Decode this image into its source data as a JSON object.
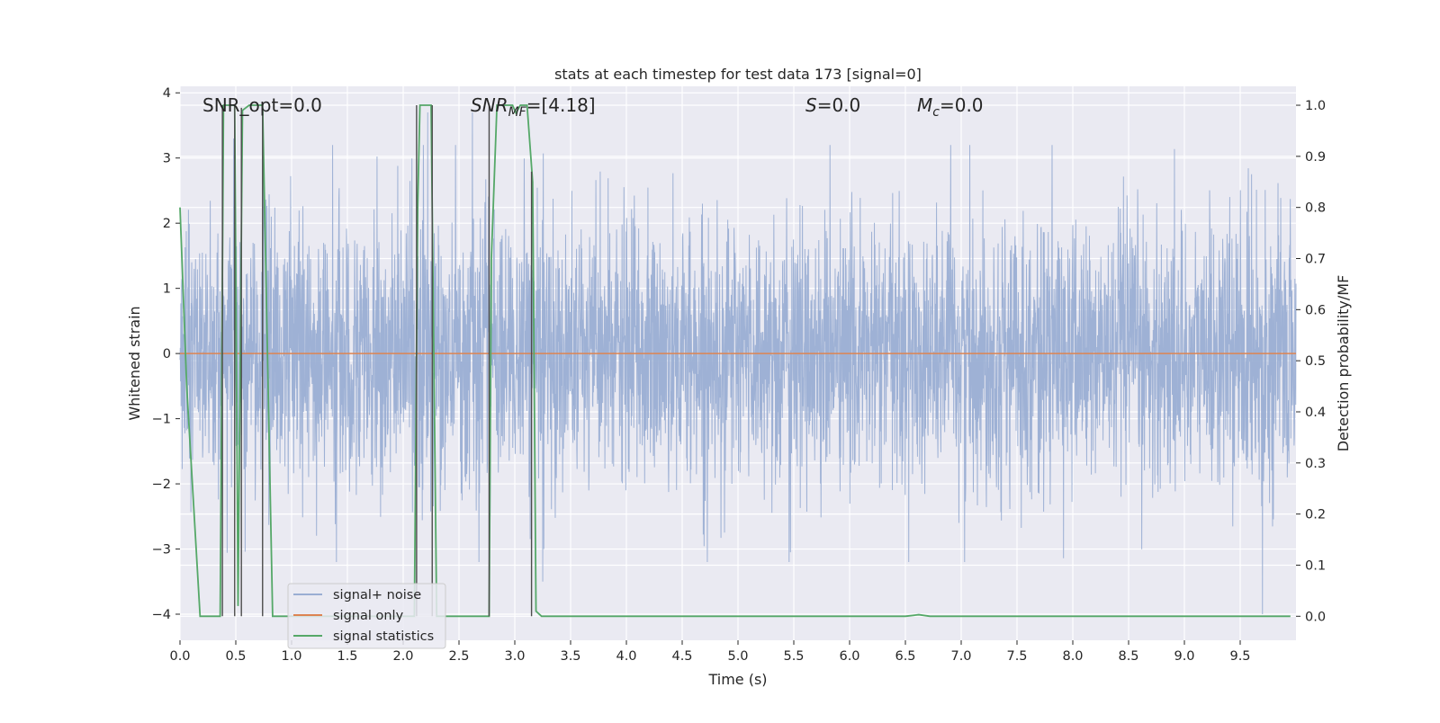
{
  "chart_data": {
    "type": "line",
    "title": "stats at each timestep for test data 173 [signal=0]",
    "xlabel": "Time (s)",
    "ylabel_left": "Whitened strain",
    "ylabel_right": "Detection probability/MF",
    "xlim": [
      0.0,
      10.0
    ],
    "ylim_left": [
      -4.4,
      4.1
    ],
    "ylim_right": [
      -0.047,
      1.037
    ],
    "x_ticks": [
      0.0,
      0.5,
      1.0,
      1.5,
      2.0,
      2.5,
      3.0,
      3.5,
      4.0,
      4.5,
      5.0,
      5.5,
      6.0,
      6.5,
      7.0,
      7.5,
      8.0,
      8.5,
      9.0,
      9.5
    ],
    "x_tick_labels": [
      "0.0",
      "0.5",
      "1.0",
      "1.5",
      "2.0",
      "2.5",
      "3.0",
      "3.5",
      "4.0",
      "4.5",
      "5.0",
      "5.5",
      "6.0",
      "6.5",
      "7.0",
      "7.5",
      "8.0",
      "8.5",
      "9.0",
      "9.5"
    ],
    "y_ticks_left": [
      4,
      3,
      2,
      1,
      0,
      -1,
      -2,
      -3,
      -4
    ],
    "y_tick_labels_left": [
      "4",
      "3",
      "2",
      "1",
      "0",
      "−1",
      "−2",
      "−3",
      "−4"
    ],
    "y_ticks_right": [
      1.0,
      0.9,
      0.8,
      0.7,
      0.6,
      0.5,
      0.4,
      0.3,
      0.2,
      0.1,
      0.0
    ],
    "y_tick_labels_right": [
      "1.0",
      "0.9",
      "0.8",
      "0.7",
      "0.6",
      "0.5",
      "0.4",
      "0.3",
      "0.2",
      "0.1",
      "0.0"
    ],
    "grid": true,
    "legend_position": "lower-left",
    "annotations": {
      "snr_opt": "SNR_opt=0.0",
      "snr_mf_base": "SNR",
      "snr_mf_sub": "MF",
      "snr_mf_value": "=[4.18]",
      "s_sym": "S",
      "s_value": "=0.0",
      "mc_base": "M",
      "mc_sub": "c",
      "mc_value": "=0.0"
    },
    "series": [
      {
        "name": "signal+ noise",
        "axis": "left",
        "color": "#9aaed3",
        "style": "noise",
        "x_range": [
          0.0,
          10.0
        ],
        "envelope_sigma": 1.0,
        "notable_spikes": [
          [
            0.38,
            2.75
          ],
          [
            0.48,
            3.3
          ],
          [
            0.75,
            2.7
          ],
          [
            2.22,
            3.7
          ],
          [
            2.62,
            3.7
          ],
          [
            2.78,
            -2.5
          ],
          [
            3.25,
            -3.5
          ],
          [
            5.47,
            -3.05
          ],
          [
            7.03,
            -3.2
          ],
          [
            9.7,
            -4.0
          ]
        ]
      },
      {
        "name": "signal only",
        "axis": "left",
        "color": "#dd8452",
        "style": "line",
        "x": [
          0.0,
          10.0
        ],
        "y": [
          0.0,
          0.0
        ]
      },
      {
        "name": "signal statistics",
        "axis": "right",
        "color": "#55a868",
        "style": "line",
        "x": [
          0.0,
          0.06,
          0.18,
          0.22,
          0.36,
          0.39,
          0.44,
          0.49,
          0.52,
          0.56,
          0.62,
          0.74,
          0.83,
          0.88,
          0.92,
          1.3,
          2.1,
          2.13,
          2.15,
          2.19,
          2.25,
          2.3,
          2.4,
          2.77,
          2.79,
          2.84,
          2.98,
          3.01,
          3.05,
          3.11,
          3.16,
          3.19,
          3.24,
          6.5,
          6.62,
          6.72,
          9.95
        ],
        "y": [
          0.8,
          0.45,
          0.0,
          0.0,
          0.0,
          1.0,
          1.0,
          1.0,
          0.02,
          0.99,
          1.0,
          1.0,
          0.0,
          0.0,
          0.0,
          0.0,
          0.0,
          0.8,
          1.0,
          1.0,
          1.0,
          0.0,
          0.0,
          0.0,
          0.7,
          1.0,
          1.0,
          0.985,
          1.0,
          1.0,
          0.85,
          0.01,
          0.0,
          0.0,
          0.003,
          0.0,
          0.0
        ]
      },
      {
        "name": "",
        "axis": "right",
        "color": "#4c4c4c",
        "style": "vlines",
        "x": [
          0.38,
          0.49,
          0.55,
          0.74,
          2.12,
          2.26,
          2.77,
          3.15
        ],
        "y_top": [
          1.0,
          1.0,
          0.995,
          0.995,
          1.0,
          1.0,
          1.0,
          0.87
        ]
      }
    ]
  }
}
